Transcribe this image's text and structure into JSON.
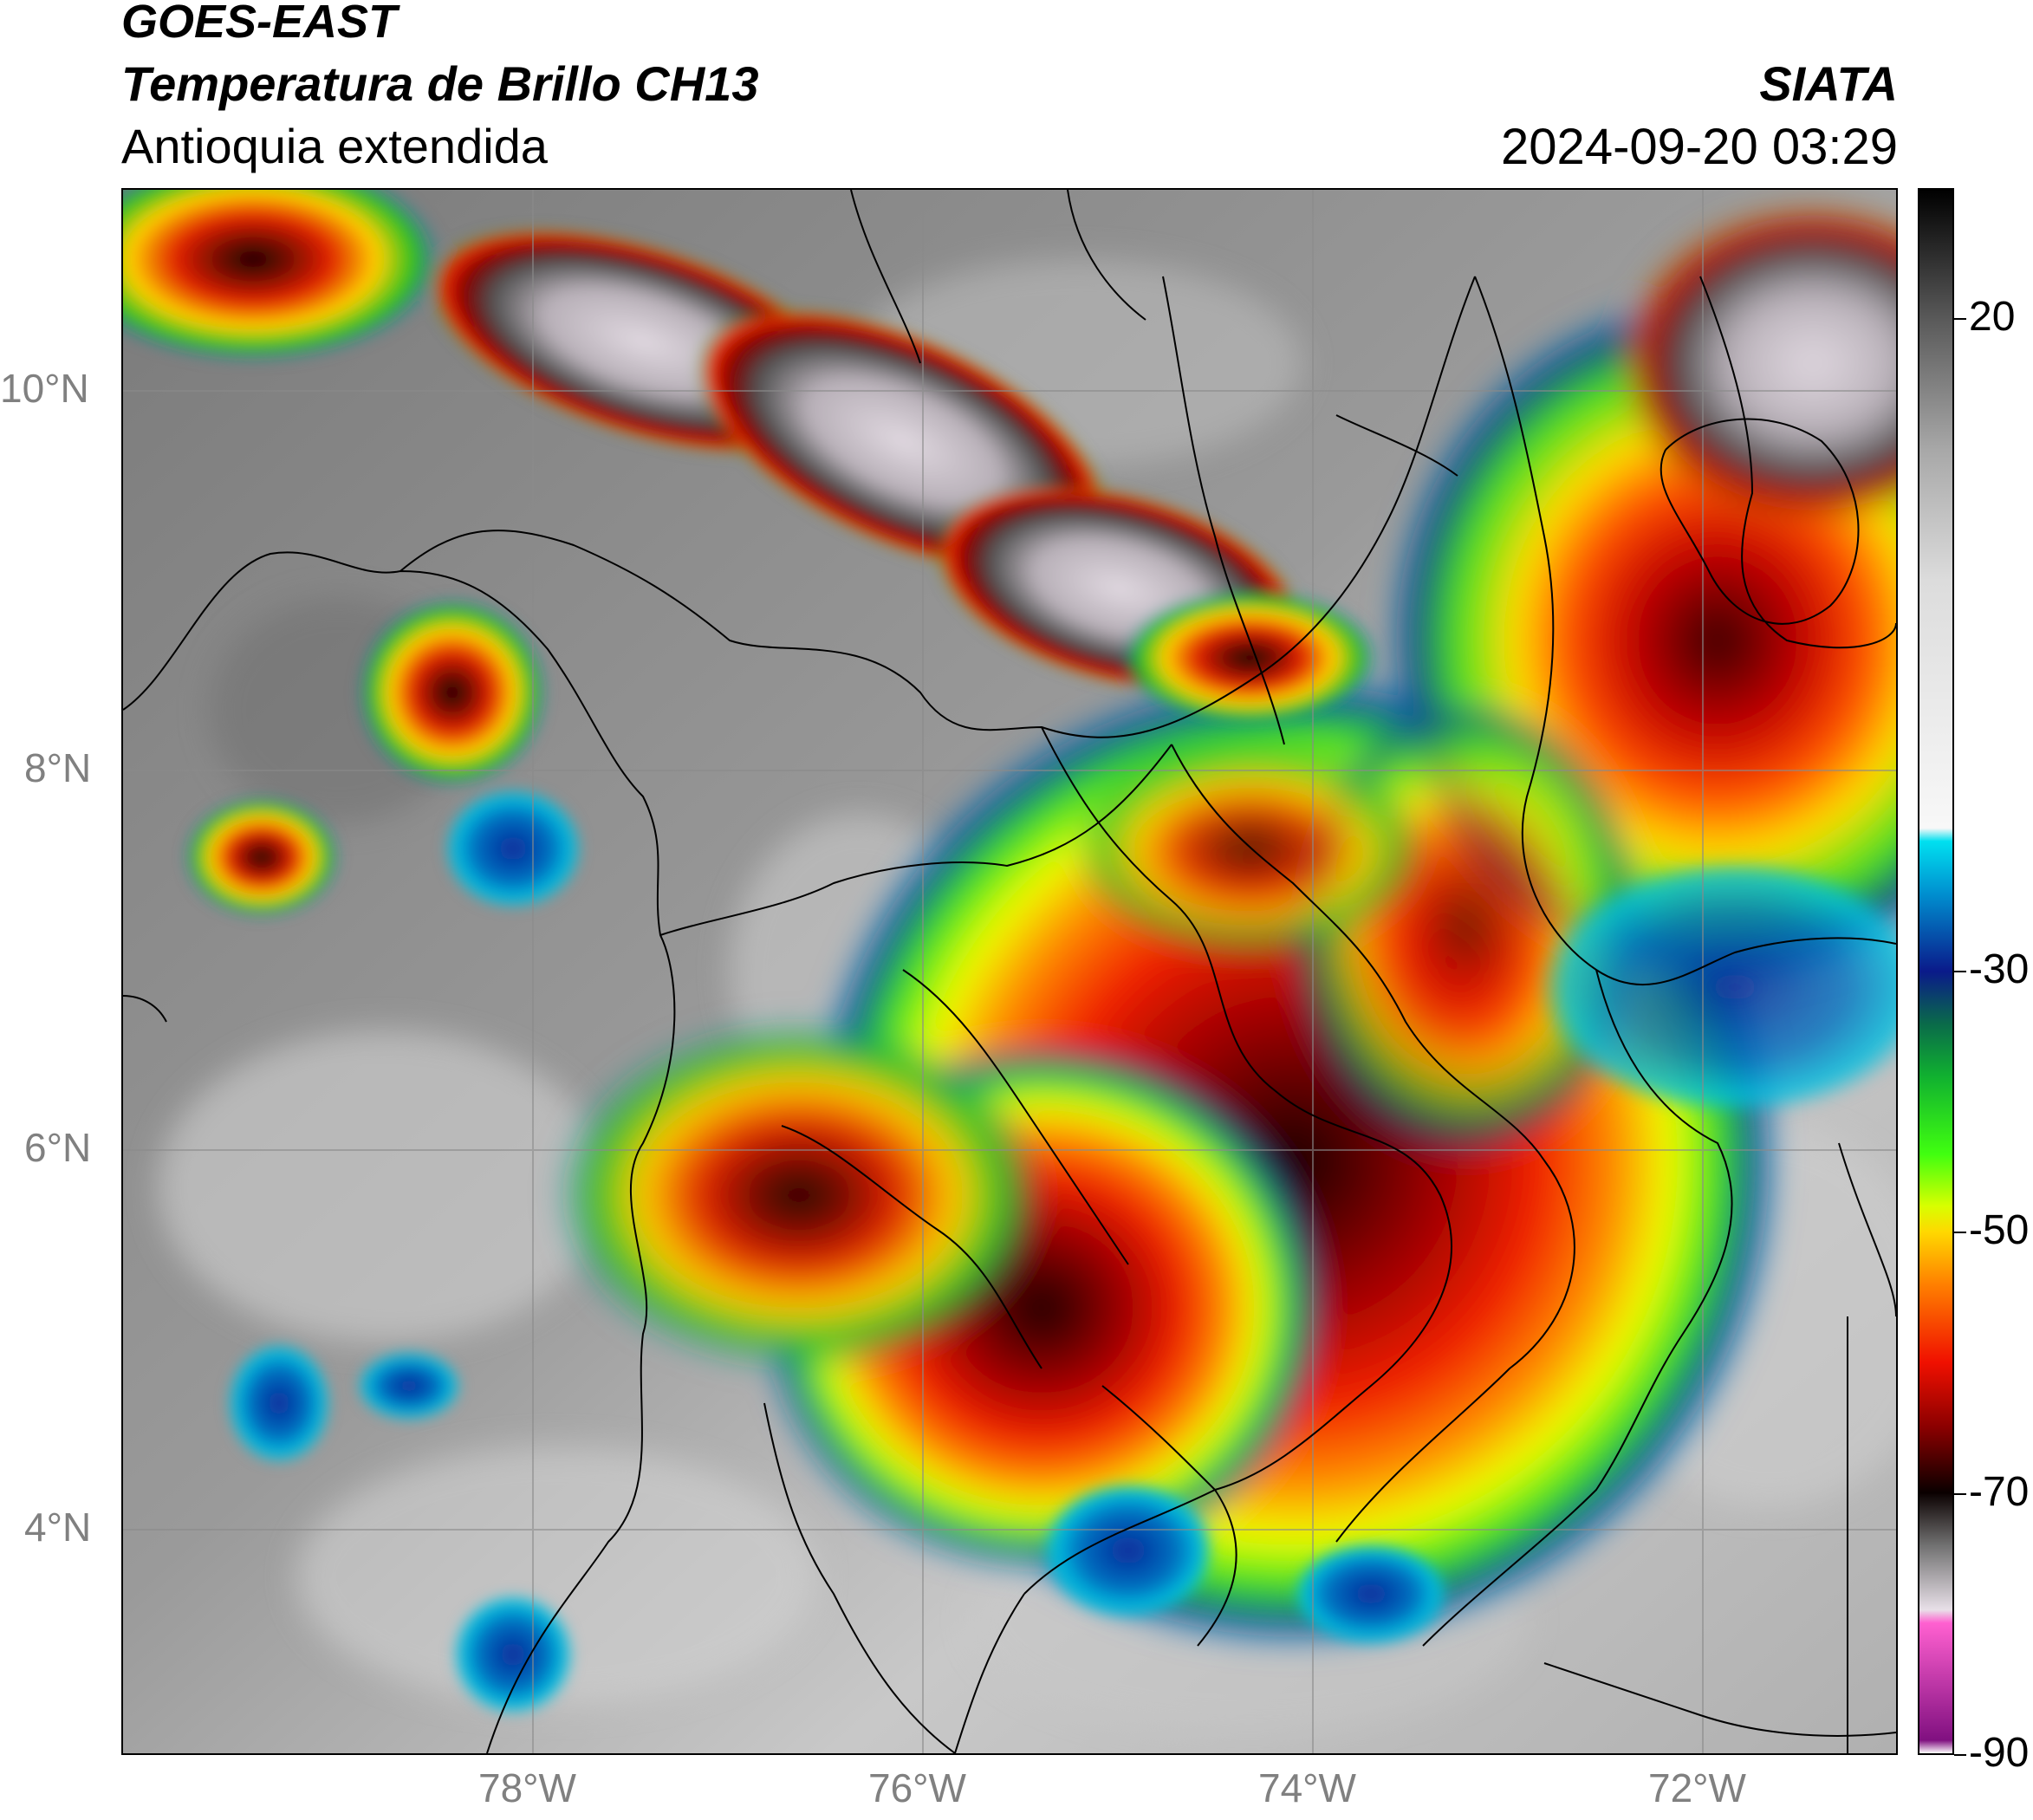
{
  "header": {
    "satellite": "GOES-EAST",
    "product": "Temperatura de Brillo CH13",
    "region": "Antioquia extendida",
    "agency": "SIATA",
    "datetime": "2024-09-20 03:29"
  },
  "map": {
    "lon_range": [
      -80.2,
      -71.1
    ],
    "lat_range": [
      2.6,
      11.0
    ],
    "lat_ticks": [
      {
        "value": 10,
        "label": "10°N"
      },
      {
        "value": 8,
        "label": "8°N"
      },
      {
        "value": 6,
        "label": "6°N"
      },
      {
        "value": 4,
        "label": "4°N"
      }
    ],
    "lon_ticks": [
      {
        "value": -78,
        "label": "78°W"
      },
      {
        "value": -76,
        "label": "76°W"
      },
      {
        "value": -74,
        "label": "74°W"
      },
      {
        "value": -72,
        "label": "72°W"
      }
    ],
    "colors": {
      "background_cloud": "#8c8c8c",
      "cold_core": "#1a0000"
    }
  },
  "colorbar": {
    "range": [
      -90,
      30
    ],
    "ticks": [
      {
        "value": 20,
        "label": "20"
      },
      {
        "value": -30,
        "label": "-30"
      },
      {
        "value": -50,
        "label": "-50"
      },
      {
        "value": -70,
        "label": "-70"
      },
      {
        "value": -90,
        "label": "-90"
      }
    ],
    "stops": [
      {
        "value": 30,
        "color": "#000000"
      },
      {
        "value": 20,
        "color": "#5a5a5a"
      },
      {
        "value": 10,
        "color": "#a8a8a8"
      },
      {
        "value": 0,
        "color": "#dcdcdc"
      },
      {
        "value": -19,
        "color": "#f8f8f8"
      },
      {
        "value": -20,
        "color": "#00e0f0"
      },
      {
        "value": -24,
        "color": "#0090d0"
      },
      {
        "value": -30,
        "color": "#0a1a8a"
      },
      {
        "value": -34,
        "color": "#0a6a4a"
      },
      {
        "value": -38,
        "color": "#10b030"
      },
      {
        "value": -44,
        "color": "#40ff10"
      },
      {
        "value": -48,
        "color": "#d8ff00"
      },
      {
        "value": -50,
        "color": "#ffd800"
      },
      {
        "value": -54,
        "color": "#ff8000"
      },
      {
        "value": -60,
        "color": "#f01000"
      },
      {
        "value": -65,
        "color": "#8a0000"
      },
      {
        "value": -70,
        "color": "#0a0000"
      },
      {
        "value": -74,
        "color": "#707070"
      },
      {
        "value": -79,
        "color": "#e8e0e8"
      },
      {
        "value": -80,
        "color": "#ff60d0"
      },
      {
        "value": -89,
        "color": "#801080"
      },
      {
        "value": -90,
        "color": "#ffffff"
      }
    ]
  }
}
